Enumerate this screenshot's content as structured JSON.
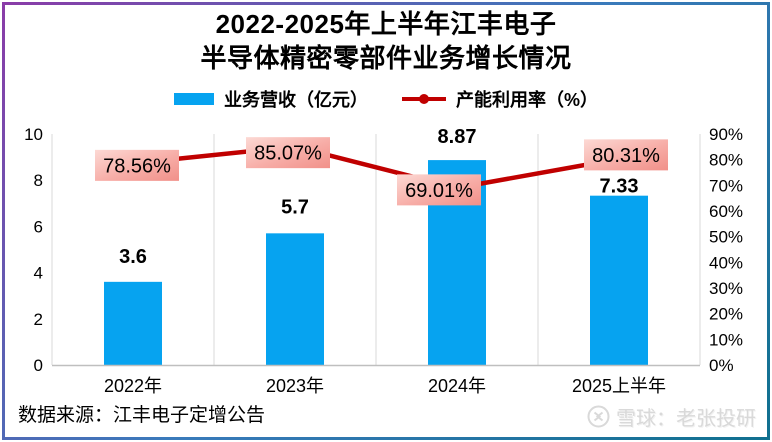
{
  "title": {
    "line1": "2022-2025年上半年江丰电子",
    "line2": "半导体精密零部件业务增长情况"
  },
  "legend": {
    "bar_label": "业务营收（亿元）",
    "line_label": "产能利用率（%）"
  },
  "colors": {
    "bar": "#06a3f0",
    "line": "#c00000",
    "label_box_light": "#fcd9d4",
    "label_box_dark": "#f19089",
    "grid": "#d9d9d9",
    "axis": "#bfbfbf",
    "watermark": "#d9d9d9",
    "border_gradient": [
      "#8a3ca8",
      "#3a7abb",
      "#10708f"
    ]
  },
  "chart_data": {
    "type": "bar",
    "subtype": "bar+line combo, dual axis",
    "title": "2022-2025年上半年江丰电子半导体精密零部件业务增长情况",
    "categories": [
      "2022年",
      "2023年",
      "2024年",
      "2025上半年"
    ],
    "series": [
      {
        "name": "业务营收（亿元）",
        "type": "bar",
        "axis": "left",
        "values": [
          3.6,
          5.7,
          8.87,
          7.33
        ],
        "labels": [
          "3.6",
          "5.7",
          "8.87",
          "7.33"
        ]
      },
      {
        "name": "产能利用率（%）",
        "type": "line",
        "axis": "right",
        "values": [
          78.56,
          85.07,
          69.01,
          80.31
        ],
        "labels": [
          "78.56%",
          "85.07%",
          "69.01%",
          "80.31%"
        ]
      }
    ],
    "left_axis": {
      "min": 0,
      "max": 10,
      "step": 2,
      "ticks": [
        "0",
        "2",
        "4",
        "6",
        "8",
        "10"
      ]
    },
    "right_axis": {
      "min": 0,
      "max": 90,
      "step": 10,
      "ticks": [
        "0%",
        "10%",
        "20%",
        "30%",
        "40%",
        "50%",
        "60%",
        "70%",
        "80%",
        "90%"
      ]
    },
    "grid": "vertical category separators only",
    "legend_position": "top"
  },
  "source_note": "数据来源：江丰电子定增公告",
  "watermark": {
    "text": "雪球：老张投研",
    "logo": "xueqiu-logo"
  }
}
